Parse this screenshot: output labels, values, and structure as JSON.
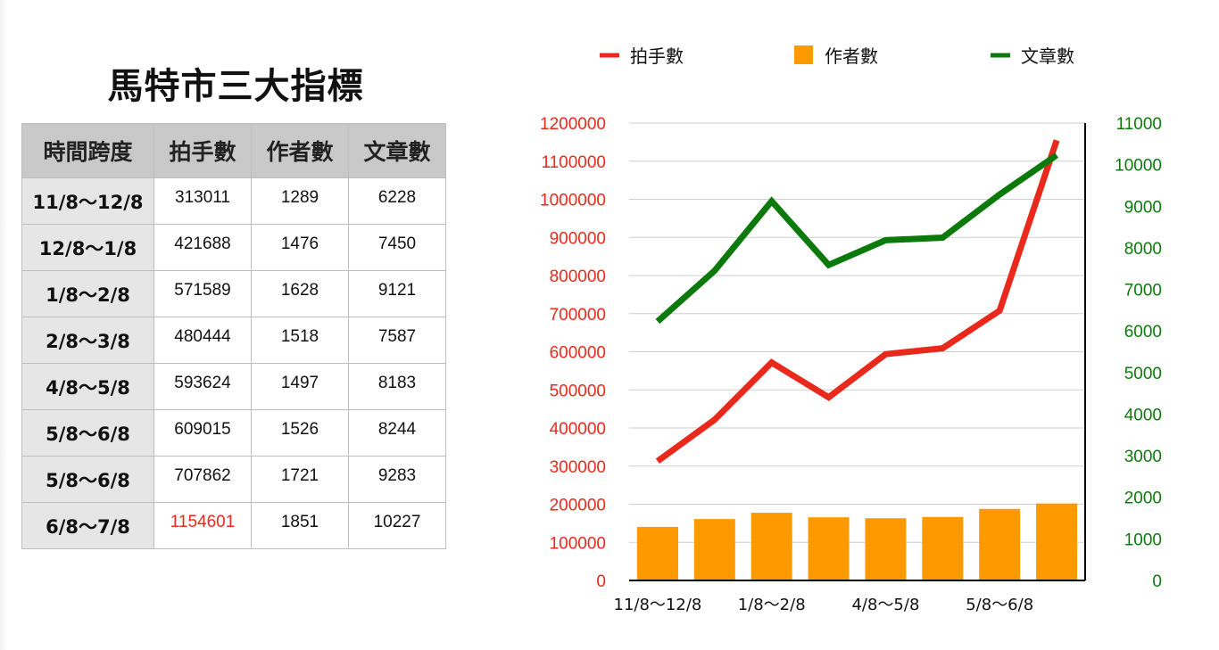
{
  "slide_title": "馬特市三大指標",
  "table": {
    "headers": [
      "時間跨度",
      "拍手數",
      "作者數",
      "文章數"
    ],
    "rows": [
      {
        "period": "11/8～12/8",
        "claps": "313011",
        "authors": "1289",
        "articles": "6228"
      },
      {
        "period": "12/8～1/8",
        "claps": "421688",
        "authors": "1476",
        "articles": "7450"
      },
      {
        "period": "1/8～2/8",
        "claps": "571589",
        "authors": "1628",
        "articles": "9121"
      },
      {
        "period": "2/8～3/8",
        "claps": "480444",
        "authors": "1518",
        "articles": "7587"
      },
      {
        "period": "4/8～5/8",
        "claps": "593624",
        "authors": "1497",
        "articles": "8183"
      },
      {
        "period": "5/8～6/8",
        "claps": "609015",
        "authors": "1526",
        "articles": "8244"
      },
      {
        "period": "5/8～6/8",
        "claps": "707862",
        "authors": "1721",
        "articles": "9283"
      },
      {
        "period": "6/8～7/8",
        "claps": "1154601",
        "authors": "1851",
        "articles": "10227"
      }
    ]
  },
  "chart_data": {
    "type": "bar+line",
    "categories": [
      "11/8～12/8",
      "12/8～1/8",
      "1/8～2/8",
      "2/8～3/8",
      "4/8～5/8",
      "5/8～6/8",
      "5/8～6/8",
      "6/8～7/8"
    ],
    "x_tick_labels": [
      "11/8～12/8",
      "",
      "1/8～2/8",
      "",
      "4/8～5/8",
      "",
      "5/8～6/8",
      ""
    ],
    "series": [
      {
        "name": "拍手數",
        "type": "line",
        "axis": "left",
        "color": "#e8291c",
        "values": [
          313011,
          421688,
          571589,
          480444,
          593624,
          609015,
          707862,
          1154601
        ]
      },
      {
        "name": "作者數",
        "type": "bar",
        "axis": "right",
        "color": "#ff9900",
        "values": [
          1289,
          1476,
          1628,
          1518,
          1497,
          1526,
          1721,
          1851
        ]
      },
      {
        "name": "文章數",
        "type": "line",
        "axis": "right",
        "color": "#0b7a0b",
        "values": [
          6228,
          7450,
          9121,
          7587,
          8183,
          8244,
          9283,
          10227
        ]
      }
    ],
    "left_axis": {
      "min": 0,
      "max": 1200000,
      "step": 100000,
      "color": "#e8291c",
      "tick_labels": [
        "0",
        "100000",
        "200000",
        "300000",
        "400000",
        "500000",
        "600000",
        "700000",
        "800000",
        "900000",
        "1000000",
        "1100000",
        "1200000"
      ]
    },
    "right_axis": {
      "min": 0,
      "max": 11000,
      "step": 1000,
      "color": "#0b7a0b",
      "tick_labels": [
        "0",
        "1000",
        "2000",
        "3000",
        "4000",
        "5000",
        "6000",
        "7000",
        "8000",
        "9000",
        "10000",
        "11000"
      ]
    },
    "grid": true,
    "legend_position": "top"
  }
}
